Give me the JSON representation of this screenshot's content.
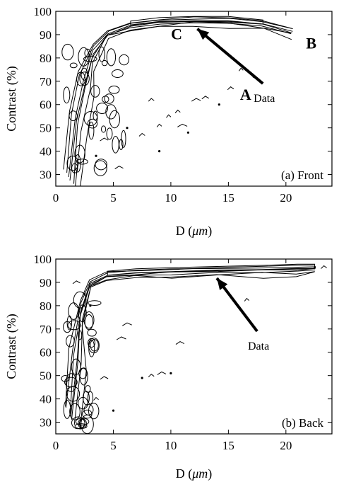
{
  "chart_data": [
    {
      "type": "contour",
      "panel_label": "(a) Front",
      "xlabel_main": "D (",
      "xlabel_unit": "μm",
      "xlabel_close": ")",
      "ylabel": "Contrast (%)",
      "xlim": [
        0,
        24
      ],
      "ylim": [
        25,
        100
      ],
      "xticks": [
        0,
        5,
        10,
        15,
        20
      ],
      "yticks": [
        30,
        40,
        50,
        60,
        70,
        80,
        90,
        100
      ],
      "ridge": [
        [
          1,
          30
        ],
        [
          1.5,
          55
        ],
        [
          2.2,
          72
        ],
        [
          3.2,
          84
        ],
        [
          4.5,
          91
        ],
        [
          6.5,
          94.5
        ],
        [
          9,
          96
        ],
        [
          12,
          96.5
        ],
        [
          15,
          96.5
        ],
        [
          18,
          95
        ],
        [
          20.5,
          92
        ]
      ],
      "points": [
        {
          "label": "A",
          "x": 16.5,
          "y": 62
        },
        {
          "label": "B",
          "x": 22.2,
          "y": 84
        },
        {
          "label": "C",
          "x": 10.5,
          "y": 88
        }
      ],
      "arrow": {
        "text": "Data",
        "from": [
          18,
          69
        ],
        "to": [
          12.3,
          92.5
        ]
      },
      "scatter": [
        [
          3.5,
          38
        ],
        [
          4.2,
          45
        ],
        [
          5.5,
          33
        ],
        [
          6.2,
          50
        ],
        [
          7.5,
          47
        ],
        [
          8.3,
          62
        ],
        [
          9.0,
          40
        ],
        [
          9.8,
          55
        ],
        [
          10.6,
          57
        ],
        [
          11.5,
          48
        ],
        [
          12.2,
          62
        ],
        [
          13.0,
          63
        ],
        [
          14.2,
          60
        ],
        [
          15.2,
          67
        ],
        [
          16.1,
          75
        ],
        [
          17.2,
          72
        ],
        [
          9.0,
          51
        ],
        [
          11.0,
          51
        ]
      ]
    },
    {
      "type": "contour",
      "panel_label": "(b) Back",
      "xlabel_main": "D (",
      "xlabel_unit": "μm",
      "xlabel_close": ")",
      "ylabel": "Contrast (%)",
      "xlim": [
        0,
        24
      ],
      "ylim": [
        25,
        100
      ],
      "xticks": [
        0,
        5,
        10,
        15,
        20
      ],
      "yticks": [
        30,
        40,
        50,
        60,
        70,
        80,
        90,
        100
      ],
      "ridge": [
        [
          1,
          35
        ],
        [
          1.5,
          60
        ],
        [
          2.2,
          80
        ],
        [
          3,
          90
        ],
        [
          4.5,
          93.5
        ],
        [
          7,
          94.5
        ],
        [
          10,
          95
        ],
        [
          14,
          95.5
        ],
        [
          18,
          96
        ],
        [
          21,
          96.5
        ],
        [
          22.5,
          96.5
        ]
      ],
      "points": [],
      "arrow": {
        "text": "Data",
        "from": [
          17.5,
          69
        ],
        "to": [
          14,
          91.8
        ]
      },
      "scatter": [
        [
          3,
          80
        ],
        [
          3.5,
          40
        ],
        [
          4.2,
          49
        ],
        [
          5,
          35
        ],
        [
          5.7,
          66
        ],
        [
          6.2,
          72
        ],
        [
          7.5,
          49
        ],
        [
          8.3,
          50
        ],
        [
          9.2,
          51
        ],
        [
          10,
          51
        ],
        [
          10.8,
          64
        ],
        [
          16.6,
          82.5
        ],
        [
          22.5,
          96.5
        ],
        [
          23.3,
          96.5
        ],
        [
          1.8,
          90
        ],
        [
          2.5,
          85
        ]
      ]
    }
  ]
}
